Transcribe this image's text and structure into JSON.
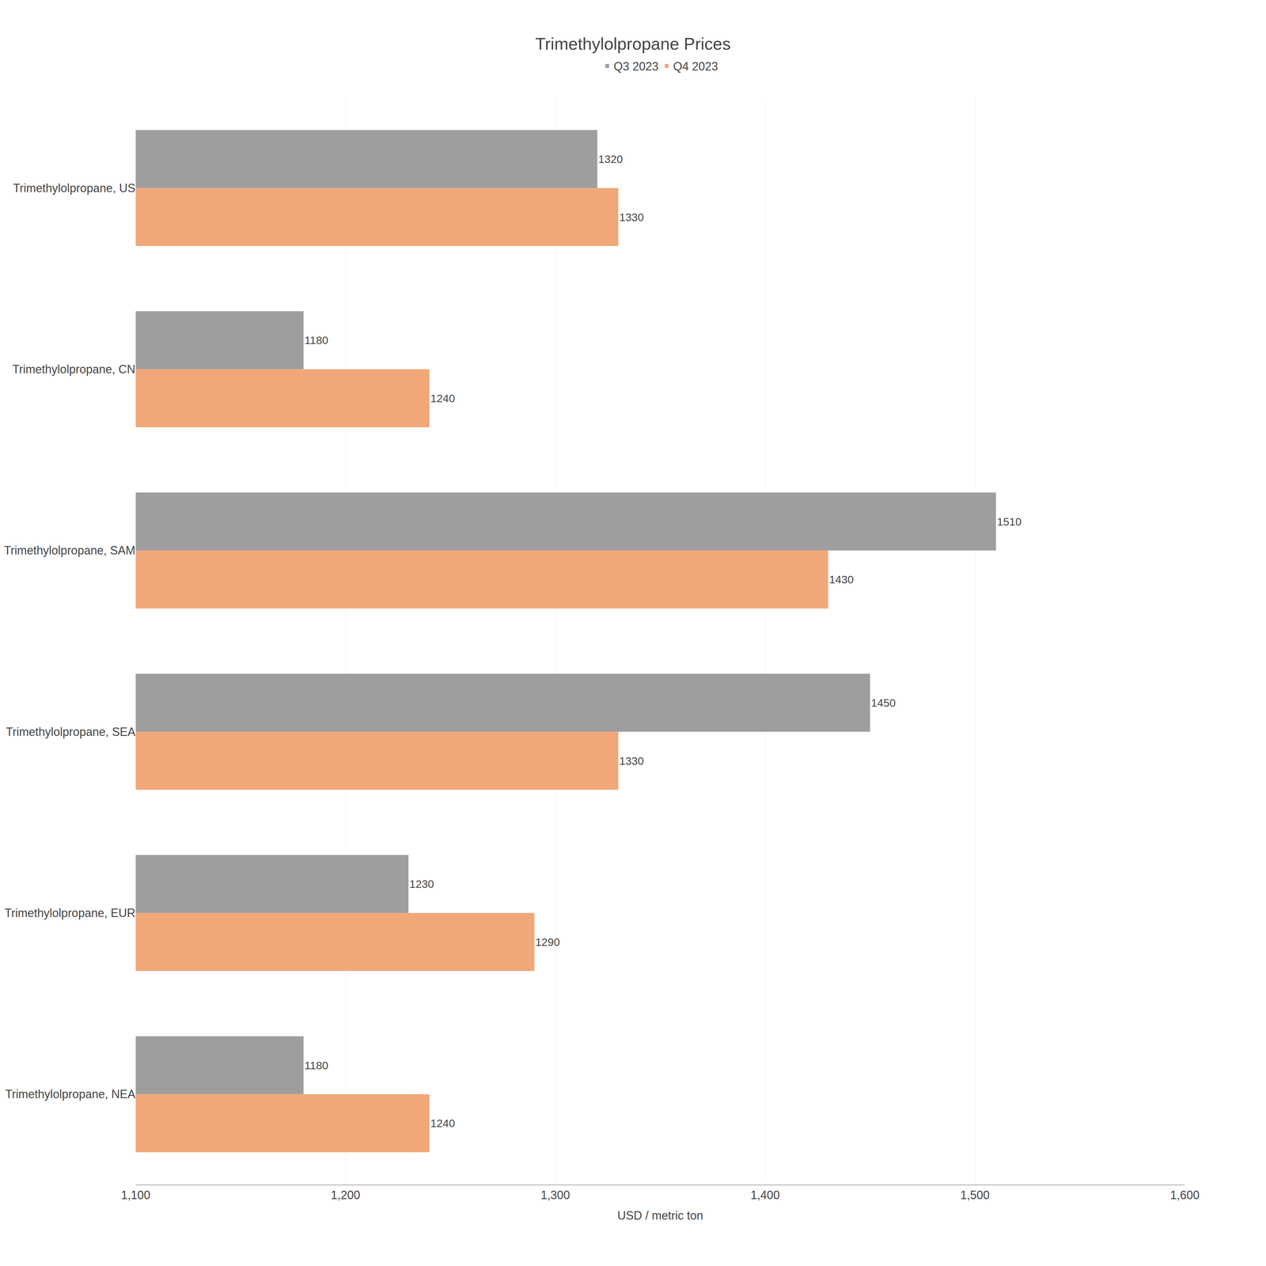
{
  "chart_data": {
    "type": "bar",
    "orientation": "horizontal",
    "title": "Trimethylolpropane Prices",
    "categories": [
      "Trimethylolpropane, US",
      "Trimethylolpropane, CN",
      "Trimethylolpropane, SAM",
      "Trimethylolpropane, SEA",
      "Trimethylolpropane, EUR",
      "Trimethylolpropane, NEA"
    ],
    "series": [
      {
        "name": "Q3 2023",
        "color": "#9e9e9e",
        "values": [
          1320,
          1180,
          1510,
          1450,
          1230,
          1180
        ]
      },
      {
        "name": "Q4 2023",
        "color": "#f0a878",
        "values": [
          1330,
          1240,
          1430,
          1330,
          1290,
          1240
        ]
      }
    ],
    "xlabel": "USD / metric ton",
    "xlim": [
      1100,
      1600
    ],
    "xticks": [
      {
        "value": 1100,
        "label": "1,100"
      },
      {
        "value": 1200,
        "label": "1,200"
      },
      {
        "value": 1300,
        "label": "1,300"
      },
      {
        "value": 1400,
        "label": "1,400"
      },
      {
        "value": 1500,
        "label": "1,500"
      },
      {
        "value": 1600,
        "label": "1,600"
      }
    ],
    "grid": true,
    "data_labels": true,
    "legend": "top"
  }
}
